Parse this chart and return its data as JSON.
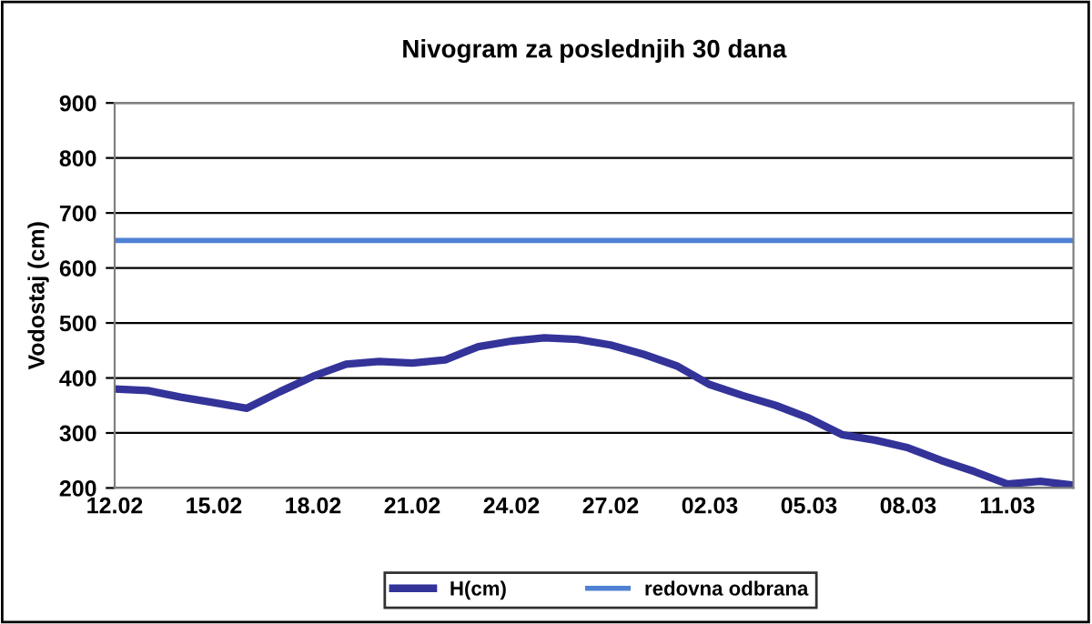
{
  "chart_data": {
    "type": "line",
    "title": "Nivogram za poslednjih 30 dana",
    "ylabel": "Vodostaj (cm)",
    "categories": [
      "12.02",
      null,
      null,
      "15.02",
      null,
      null,
      "18.02",
      null,
      null,
      "21.02",
      null,
      null,
      "24.02",
      null,
      null,
      "27.02",
      null,
      null,
      "02.03",
      null,
      null,
      "05.03",
      null,
      null,
      "08.03",
      null,
      null,
      "11.03",
      null,
      null
    ],
    "series": [
      {
        "name": "H(cm)",
        "color": "#333399",
        "values": [
          380,
          377,
          365,
          355,
          345,
          375,
          403,
          425,
          430,
          427,
          433,
          457,
          467,
          473,
          470,
          460,
          443,
          422,
          388,
          368,
          350,
          327,
          297,
          287,
          273,
          250,
          230,
          207,
          212,
          205
        ]
      }
    ],
    "ref_lines": [
      {
        "axis": "y",
        "value": 650,
        "label": "redovna odbrana",
        "color": "#4f81d4"
      }
    ],
    "ylim": [
      200,
      900
    ],
    "yticks": [
      200,
      300,
      400,
      500,
      600,
      700,
      800,
      900
    ],
    "grid": "y",
    "legend": "bottom",
    "marker": "none",
    "line_style": "solid"
  }
}
